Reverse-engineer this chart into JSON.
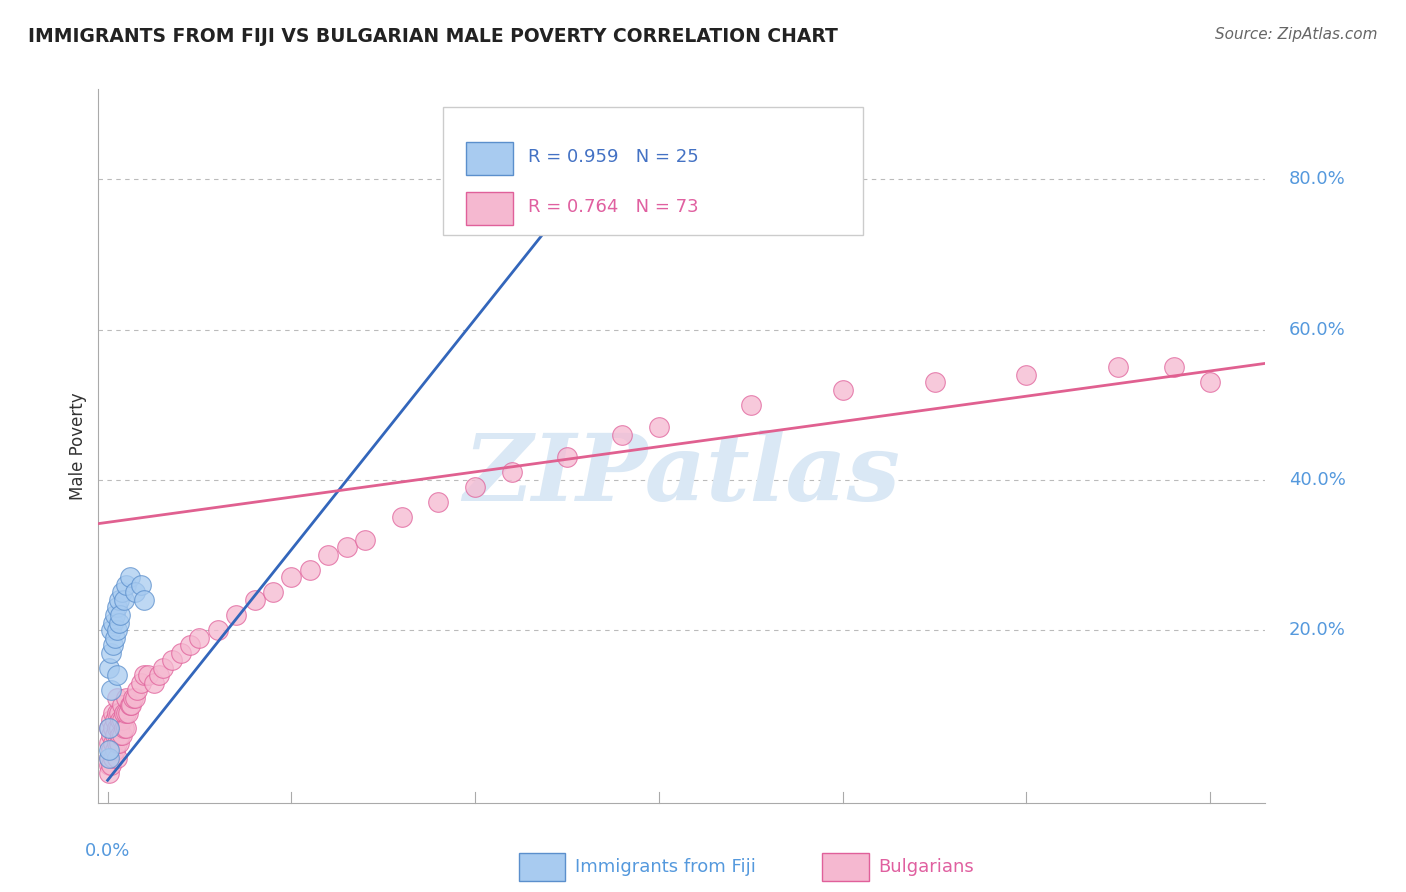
{
  "title": "IMMIGRANTS FROM FIJI VS BULGARIAN MALE POVERTY CORRELATION CHART",
  "source": "Source: ZipAtlas.com",
  "ylabel": "Male Poverty",
  "y_tick_labels": [
    "20.0%",
    "40.0%",
    "60.0%",
    "80.0%"
  ],
  "y_tick_values": [
    0.2,
    0.4,
    0.6,
    0.8
  ],
  "xlim": [
    -0.005,
    0.63
  ],
  "ylim": [
    -0.03,
    0.92
  ],
  "fiji_color": "#A8CBF0",
  "fiji_edge_color": "#5B8FCC",
  "bulgarian_color": "#F5B8D0",
  "bulgarian_edge_color": "#E0609A",
  "fiji_line_color": "#3366BB",
  "bulgarian_line_color": "#E06090",
  "legend_text_fiji": "R = 0.959   N = 25",
  "legend_text_bulgarian": "R = 0.764   N = 73",
  "bottom_label_fiji": "Immigrants from Fiji",
  "bottom_label_bulgarian": "Bulgarians",
  "watermark_text": "ZIPatlas",
  "background_color": "#FFFFFF",
  "grid_color": "#CCCCCC",
  "fiji_scatter_x": [
    0.0005,
    0.001,
    0.001,
    0.001,
    0.002,
    0.002,
    0.002,
    0.003,
    0.003,
    0.004,
    0.004,
    0.005,
    0.005,
    0.005,
    0.006,
    0.006,
    0.007,
    0.008,
    0.009,
    0.01,
    0.012,
    0.015,
    0.018,
    0.02,
    0.28
  ],
  "fiji_scatter_y": [
    0.03,
    0.04,
    0.07,
    0.15,
    0.12,
    0.17,
    0.2,
    0.18,
    0.21,
    0.19,
    0.22,
    0.14,
    0.2,
    0.23,
    0.21,
    0.24,
    0.22,
    0.25,
    0.24,
    0.26,
    0.27,
    0.25,
    0.26,
    0.24,
    0.85
  ],
  "bulgarian_scatter_x": [
    0.0005,
    0.001,
    0.001,
    0.001,
    0.001,
    0.002,
    0.002,
    0.002,
    0.002,
    0.003,
    0.003,
    0.003,
    0.003,
    0.004,
    0.004,
    0.004,
    0.005,
    0.005,
    0.005,
    0.005,
    0.005,
    0.006,
    0.006,
    0.006,
    0.007,
    0.007,
    0.008,
    0.008,
    0.008,
    0.009,
    0.009,
    0.01,
    0.01,
    0.01,
    0.011,
    0.012,
    0.013,
    0.014,
    0.015,
    0.016,
    0.018,
    0.02,
    0.022,
    0.025,
    0.028,
    0.03,
    0.035,
    0.04,
    0.045,
    0.05,
    0.06,
    0.07,
    0.08,
    0.09,
    0.1,
    0.11,
    0.12,
    0.13,
    0.14,
    0.16,
    0.18,
    0.2,
    0.22,
    0.25,
    0.28,
    0.3,
    0.35,
    0.4,
    0.45,
    0.5,
    0.55,
    0.58,
    0.6
  ],
  "bulgarian_scatter_y": [
    0.02,
    0.01,
    0.03,
    0.05,
    0.07,
    0.02,
    0.04,
    0.06,
    0.08,
    0.03,
    0.05,
    0.07,
    0.09,
    0.04,
    0.06,
    0.08,
    0.03,
    0.05,
    0.07,
    0.09,
    0.11,
    0.05,
    0.07,
    0.09,
    0.06,
    0.08,
    0.06,
    0.08,
    0.1,
    0.07,
    0.09,
    0.07,
    0.09,
    0.11,
    0.09,
    0.1,
    0.1,
    0.11,
    0.11,
    0.12,
    0.13,
    0.14,
    0.14,
    0.13,
    0.14,
    0.15,
    0.16,
    0.17,
    0.18,
    0.19,
    0.2,
    0.22,
    0.24,
    0.25,
    0.27,
    0.28,
    0.3,
    0.31,
    0.32,
    0.35,
    0.37,
    0.39,
    0.41,
    0.43,
    0.46,
    0.47,
    0.5,
    0.52,
    0.53,
    0.54,
    0.55,
    0.55,
    0.53
  ],
  "fiji_line_x": [
    0.0,
    0.285
  ],
  "fiji_line_y": [
    0.0,
    0.875
  ],
  "bulgarian_line_x": [
    -0.01,
    0.63
  ],
  "bulgarian_line_y": [
    0.34,
    0.555
  ]
}
